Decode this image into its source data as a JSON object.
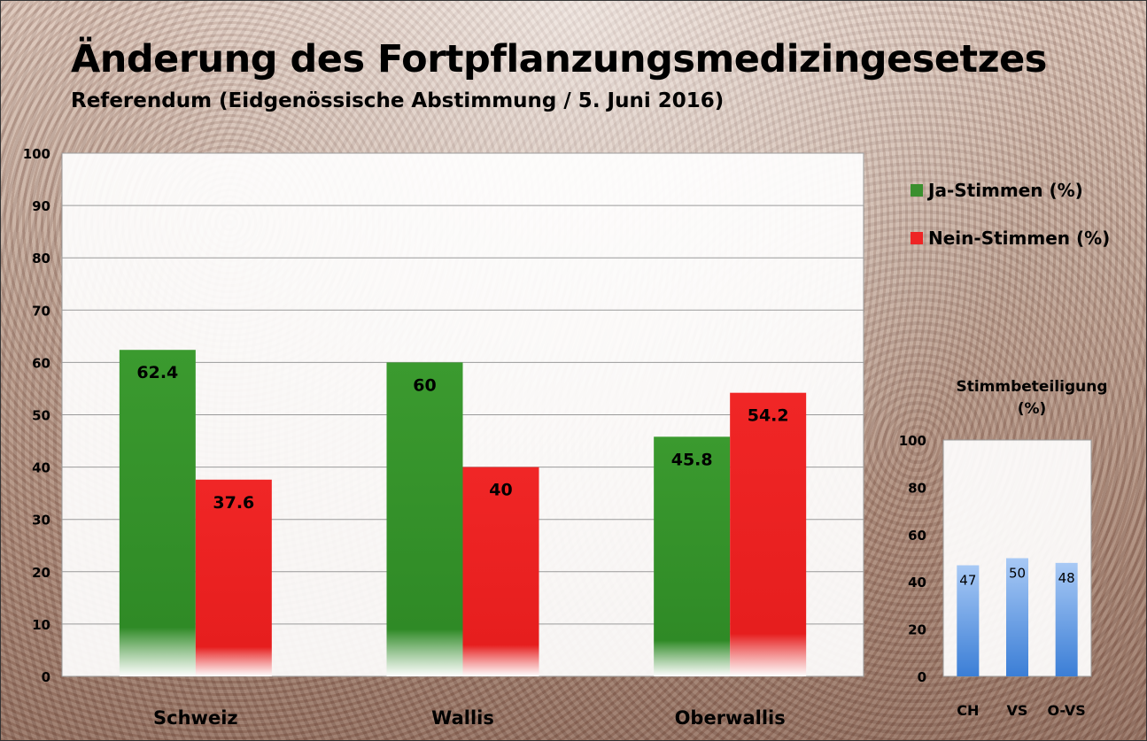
{
  "title": "Änderung des Fortpflanzungsmedizingesetzes",
  "subtitle": "Referendum (Eidgenössische Abstimmung / 5. Juni 2016)",
  "chart_data": [
    {
      "type": "bar",
      "categories": [
        "Schweiz",
        "Wallis",
        "Oberwallis"
      ],
      "series": [
        {
          "name": "Ja-Stimmen (%)",
          "values": [
            62.4,
            60,
            45.8
          ],
          "color": "#3a8f2e"
        },
        {
          "name": "Nein-Stimmen (%)",
          "values": [
            37.6,
            40,
            54.2
          ],
          "color": "#ee2424"
        }
      ],
      "data_labels": [
        [
          "62.4",
          "60",
          "45.8"
        ],
        [
          "37.6",
          "40",
          "54.2"
        ]
      ],
      "ylim": [
        0,
        100
      ],
      "yticks": [
        0,
        10,
        20,
        30,
        40,
        50,
        60,
        70,
        80,
        90,
        100
      ],
      "grid": true,
      "legend": "right"
    },
    {
      "type": "bar",
      "title": "Stimmbeteiligung (%)",
      "title_lines": [
        "Stimmbeteiligung",
        "(%)"
      ],
      "categories": [
        "CH",
        "VS",
        "O-VS"
      ],
      "values": [
        47,
        50,
        48
      ],
      "color": "#6aa3e8",
      "ylim": [
        0,
        100
      ],
      "yticks": [
        0,
        20,
        40,
        60,
        80,
        100
      ],
      "grid": false
    }
  ]
}
